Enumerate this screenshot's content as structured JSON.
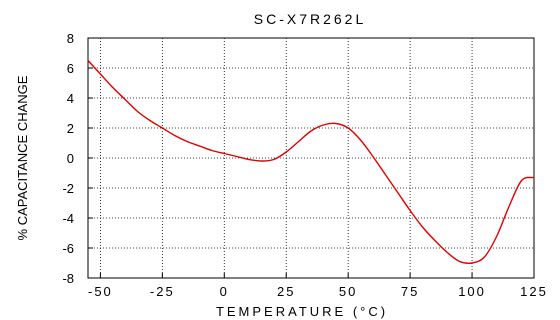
{
  "chart_data": {
    "type": "line",
    "title": "SC-X7R262L",
    "xlabel": "TEMPERATURE (°C)",
    "ylabel": "% CAPACITANCE CHANGE",
    "xlim": [
      -55,
      125
    ],
    "ylim": [
      -8,
      8
    ],
    "x_ticks": [
      -50,
      -25,
      0,
      25,
      50,
      75,
      100,
      125
    ],
    "y_ticks": [
      -8,
      -6,
      -4,
      -2,
      0,
      2,
      4,
      6,
      8
    ],
    "x_tick_labels": [
      "-50",
      "-25",
      "0",
      "25",
      "50",
      "75",
      "100",
      "125"
    ],
    "y_tick_labels": [
      "-8",
      "-6",
      "-4",
      "-2",
      "0",
      "2",
      "4",
      "6",
      "8"
    ],
    "grid": true,
    "series": [
      {
        "color": "#e00000",
        "x": [
          -55,
          -50,
          -45,
          -40,
          -35,
          -30,
          -25,
          -20,
          -15,
          -10,
          -5,
          0,
          5,
          10,
          15,
          20,
          25,
          30,
          35,
          40,
          45,
          50,
          55,
          60,
          65,
          70,
          75,
          80,
          85,
          90,
          95,
          100,
          105,
          110,
          115,
          120,
          125
        ],
        "y": [
          6.5,
          5.6,
          4.7,
          3.9,
          3.1,
          2.5,
          2.0,
          1.5,
          1.1,
          0.8,
          0.5,
          0.3,
          0.1,
          -0.1,
          -0.2,
          -0.1,
          0.4,
          1.1,
          1.8,
          2.2,
          2.3,
          2.0,
          1.2,
          0.1,
          -1.1,
          -2.3,
          -3.5,
          -4.6,
          -5.5,
          -6.3,
          -6.9,
          -7.0,
          -6.6,
          -5.2,
          -3.2,
          -1.5,
          -1.3
        ]
      }
    ]
  }
}
